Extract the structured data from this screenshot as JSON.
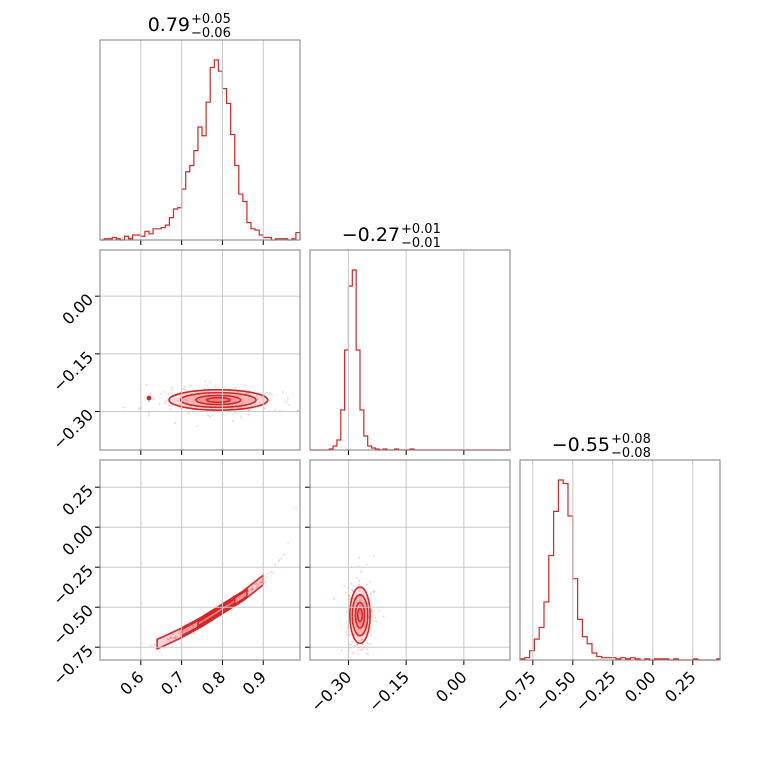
{
  "colors": {
    "accent": "#d62728",
    "grid": "#c8c8c8",
    "frame": "#7f7f7f",
    "fill": "#e77c80"
  },
  "chart_data": {
    "type": "corner",
    "parameters": [
      {
        "title": {
          "main": "0.79",
          "sup": "+0.05",
          "sub": "−0.06"
        },
        "range": [
          0.5,
          0.99
        ],
        "ticks": [
          0.6,
          0.7,
          0.8,
          0.9
        ],
        "tick_labels": [
          "0.6",
          "0.7",
          "0.8",
          "0.9"
        ]
      },
      {
        "title": {
          "main": "−0.27",
          "sup": "+0.01",
          "sub": "−0.01"
        },
        "range": [
          -0.4,
          0.12
        ],
        "ticks": [
          -0.3,
          -0.15,
          0.0
        ],
        "tick_labels": [
          "−0.30",
          "−0.15",
          "0.00"
        ]
      },
      {
        "title": {
          "main": "−0.55",
          "sup": "+0.08",
          "sub": "−0.08"
        },
        "range": [
          -0.83,
          0.42
        ],
        "ticks": [
          -0.75,
          -0.5,
          -0.25,
          0.0,
          0.25
        ],
        "tick_labels": [
          "−0.75",
          "−0.50",
          "−0.25",
          "0.00",
          "0.25"
        ]
      }
    ],
    "histograms": [
      {
        "param": 0,
        "bin_edges": [
          0.5,
          0.51,
          0.52,
          0.53,
          0.54,
          0.55,
          0.56,
          0.57,
          0.58,
          0.59,
          0.6,
          0.61,
          0.62,
          0.63,
          0.64,
          0.65,
          0.66,
          0.67,
          0.68,
          0.69,
          0.7,
          0.71,
          0.72,
          0.73,
          0.74,
          0.75,
          0.76,
          0.77,
          0.78,
          0.79,
          0.8,
          0.81,
          0.82,
          0.83,
          0.84,
          0.85,
          0.86,
          0.87,
          0.88,
          0.89,
          0.9,
          0.91,
          0.92,
          0.93,
          0.94,
          0.95,
          0.96,
          0.97,
          0.98,
          0.99
        ],
        "counts": [
          0,
          1,
          1,
          2,
          1,
          0,
          3,
          1,
          4,
          4,
          3,
          7,
          5,
          9,
          9,
          10,
          12,
          18,
          25,
          26,
          41,
          55,
          60,
          72,
          91,
          84,
          111,
          139,
          145,
          136,
          122,
          110,
          85,
          60,
          37,
          31,
          14,
          9,
          8,
          4,
          2,
          2,
          0,
          1,
          1,
          1,
          0,
          1,
          6
        ]
      },
      {
        "param": 1,
        "bin_edges": [
          -0.4,
          -0.39,
          -0.38,
          -0.37,
          -0.36,
          -0.35,
          -0.34,
          -0.33,
          -0.32,
          -0.31,
          -0.3,
          -0.29,
          -0.28,
          -0.27,
          -0.26,
          -0.25,
          -0.24,
          -0.23,
          -0.22,
          -0.21,
          -0.2,
          -0.19,
          -0.18,
          -0.17,
          -0.16,
          -0.15,
          -0.14,
          -0.13,
          -0.12,
          -0.11,
          -0.1,
          -0.09,
          -0.08,
          -0.07,
          -0.06,
          -0.05,
          -0.04,
          -0.03,
          -0.02,
          -0.01,
          0.0,
          0.01,
          0.02,
          0.03,
          0.04,
          0.05,
          0.06,
          0.07,
          0.08,
          0.09,
          0.1,
          0.11,
          0.12
        ],
        "counts": [
          0,
          0,
          0,
          0,
          0,
          1,
          4,
          10,
          40,
          100,
          164,
          180,
          100,
          40,
          14,
          4,
          2,
          1,
          0,
          1,
          0,
          0,
          1,
          0,
          0,
          0,
          1,
          0,
          0,
          0,
          0,
          0,
          0,
          0,
          0,
          0,
          0,
          0,
          0,
          0,
          0,
          0,
          0,
          0,
          0,
          0,
          0,
          0,
          0,
          0,
          0,
          0
        ]
      },
      {
        "param": 2,
        "bin_edges": [
          -0.83,
          -0.8,
          -0.77,
          -0.74,
          -0.71,
          -0.68,
          -0.65,
          -0.62,
          -0.59,
          -0.56,
          -0.53,
          -0.5,
          -0.47,
          -0.44,
          -0.41,
          -0.38,
          -0.35,
          -0.32,
          -0.29,
          -0.26,
          -0.23,
          -0.2,
          -0.17,
          -0.14,
          -0.11,
          -0.08,
          -0.05,
          -0.02,
          0.01,
          0.04,
          0.07,
          0.1,
          0.13,
          0.16,
          0.19,
          0.22,
          0.25,
          0.28,
          0.31,
          0.34,
          0.37,
          0.4,
          0.42
        ],
        "counts": [
          1,
          2,
          8,
          18,
          28,
          50,
          90,
          128,
          155,
          152,
          124,
          70,
          35,
          20,
          14,
          6,
          3,
          2,
          2,
          2,
          1,
          2,
          1,
          2,
          1,
          0,
          1,
          0,
          1,
          1,
          1,
          0,
          1,
          0,
          0,
          0,
          1,
          0,
          0,
          0,
          0,
          1
        ]
      }
    ],
    "joint_panels": [
      {
        "x_param": 0,
        "y_param": 1,
        "shape": "ellipse",
        "center": [
          0.79,
          -0.27
        ],
        "spread": [
          0.055,
          0.012
        ],
        "hotspot": {
          "x": 0.62,
          "y": -0.265
        }
      },
      {
        "x_param": 0,
        "y_param": 2,
        "shape": "curve",
        "curve_x": [
          0.55,
          0.6,
          0.65,
          0.7,
          0.75,
          0.8,
          0.85,
          0.9,
          0.95,
          0.99
        ],
        "curve_y": [
          -0.8,
          -0.77,
          -0.72,
          -0.66,
          -0.59,
          -0.51,
          -0.43,
          -0.33,
          -0.18,
          0.2
        ]
      },
      {
        "x_param": 1,
        "y_param": 2,
        "shape": "ellipse",
        "center": [
          -0.27,
          -0.55
        ],
        "spread": [
          0.012,
          0.08
        ]
      }
    ]
  }
}
